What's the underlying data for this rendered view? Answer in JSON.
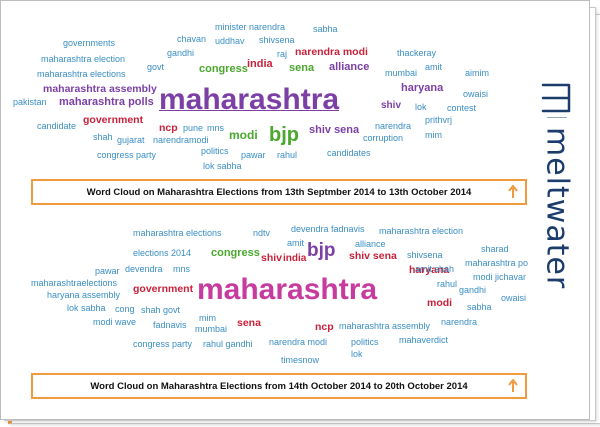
{
  "top_cloud": {
    "words": [
      {
        "id": "governments",
        "text": "governments",
        "style": "w-teal"
      },
      {
        "id": "maharashtra-election",
        "text": "maharashtra election",
        "style": "w-teal"
      },
      {
        "id": "maharashtra-elections",
        "text": "maharashtra elections",
        "style": "w-teal"
      },
      {
        "id": "maharashtra-assembly",
        "text": "maharashtra assembly",
        "style": "w-purple"
      },
      {
        "id": "pakistan",
        "text": "pakistan",
        "style": "w-teal"
      },
      {
        "id": "maharashtra-polls",
        "text": "maharashtra polls",
        "style": "w-purple"
      },
      {
        "id": "candidate",
        "text": "candidate",
        "style": "w-teal"
      },
      {
        "id": "shah",
        "text": "shah",
        "style": "w-teal"
      },
      {
        "id": "gujarat",
        "text": "gujarat",
        "style": "w-teal"
      },
      {
        "id": "narendramodi",
        "text": "narendramodi",
        "style": "w-teal"
      },
      {
        "id": "congress-party",
        "text": "congress party",
        "style": "w-teal"
      },
      {
        "id": "chavan",
        "text": "chavan",
        "style": "w-teal"
      },
      {
        "id": "gandhi",
        "text": "gandhi",
        "style": "w-teal"
      },
      {
        "id": "govt",
        "text": "govt",
        "style": "w-teal"
      },
      {
        "id": "minister-narendra",
        "text": "minister narendra",
        "style": "w-teal"
      },
      {
        "id": "uddhav",
        "text": "uddhav",
        "style": "w-teal"
      },
      {
        "id": "shivsena",
        "text": "shivsena",
        "style": "w-teal"
      },
      {
        "id": "sabha",
        "text": "sabha",
        "style": "w-teal"
      },
      {
        "id": "raj",
        "text": "raj",
        "style": "w-teal"
      },
      {
        "id": "narendra-modi",
        "text": "narendra modi",
        "style": "w-red"
      },
      {
        "id": "thackeray",
        "text": "thackeray",
        "style": "w-teal"
      },
      {
        "id": "congress",
        "text": "congress",
        "style": "w-green"
      },
      {
        "id": "india",
        "text": "india",
        "style": "w-red"
      },
      {
        "id": "sena",
        "text": "sena",
        "style": "w-green"
      },
      {
        "id": "alliance",
        "text": "alliance",
        "style": "w-purple"
      },
      {
        "id": "mumbai",
        "text": "mumbai",
        "style": "w-teal"
      },
      {
        "id": "amit",
        "text": "amit",
        "style": "w-teal"
      },
      {
        "id": "aimim",
        "text": "aimim",
        "style": "w-teal"
      },
      {
        "id": "maharashtra",
        "text": "maharashtra",
        "style": "w-purple"
      },
      {
        "id": "haryana",
        "text": "haryana",
        "style": "w-purple"
      },
      {
        "id": "owaisi",
        "text": "owaisi",
        "style": "w-teal"
      },
      {
        "id": "shiv",
        "text": "shiv",
        "style": "w-purple"
      },
      {
        "id": "lok",
        "text": "lok",
        "style": "w-teal"
      },
      {
        "id": "contest",
        "text": "contest",
        "style": "w-teal"
      },
      {
        "id": "government",
        "text": "government",
        "style": "w-red"
      },
      {
        "id": "ncp",
        "text": "ncp",
        "style": "w-red"
      },
      {
        "id": "pune",
        "text": "pune",
        "style": "w-teal"
      },
      {
        "id": "mns",
        "text": "mns",
        "style": "w-teal"
      },
      {
        "id": "modi",
        "text": "modi",
        "style": "w-green"
      },
      {
        "id": "bjp",
        "text": "bjp",
        "style": "w-green"
      },
      {
        "id": "shiv-sena",
        "text": "shiv sena",
        "style": "w-purple"
      },
      {
        "id": "narendra",
        "text": "narendra",
        "style": "w-teal"
      },
      {
        "id": "prithvrj",
        "text": "prithvrj",
        "style": "w-teal"
      },
      {
        "id": "corruption",
        "text": "corruption",
        "style": "w-teal"
      },
      {
        "id": "mim",
        "text": "mim",
        "style": "w-teal"
      },
      {
        "id": "politics",
        "text": "politics",
        "style": "w-teal"
      },
      {
        "id": "pawar",
        "text": "pawar",
        "style": "w-teal"
      },
      {
        "id": "rahul",
        "text": "rahul",
        "style": "w-teal"
      },
      {
        "id": "candidates",
        "text": "candidates",
        "style": "w-teal"
      },
      {
        "id": "lok-sabha",
        "text": "lok sabha",
        "style": "w-teal"
      }
    ]
  },
  "top_caption": "Word Cloud on Maharashtra Elections from 13th Septmber 2014 to 13th October 2014",
  "bottom_cloud": {
    "words": [
      {
        "id": "maharashtra-elections",
        "text": "maharashtra elections",
        "style": "w-teal"
      },
      {
        "id": "ndtv",
        "text": "ndtv",
        "style": "w-teal"
      },
      {
        "id": "devendra-fadnavis",
        "text": "devendra fadnavis",
        "style": "w-teal"
      },
      {
        "id": "maharashtra-election",
        "text": "maharashtra election",
        "style": "w-teal"
      },
      {
        "id": "amit",
        "text": "amit",
        "style": "w-teal"
      },
      {
        "id": "alliance",
        "text": "alliance",
        "style": "w-teal"
      },
      {
        "id": "elections-2014",
        "text": "elections 2014",
        "style": "w-teal"
      },
      {
        "id": "congress",
        "text": "congress",
        "style": "w-green"
      },
      {
        "id": "bjp",
        "text": "bjp",
        "style": "w-purple"
      },
      {
        "id": "shiv-sena",
        "text": "shiv sena",
        "style": "w-red"
      },
      {
        "id": "shivsena",
        "text": "shivsena",
        "style": "w-teal"
      },
      {
        "id": "sharad",
        "text": "sharad",
        "style": "w-teal"
      },
      {
        "id": "shiv",
        "text": "shiv",
        "style": "w-red"
      },
      {
        "id": "india",
        "text": "india",
        "style": "w-red"
      },
      {
        "id": "pawar",
        "text": "pawar",
        "style": "w-teal"
      },
      {
        "id": "devendra",
        "text": "devendra",
        "style": "w-teal"
      },
      {
        "id": "mns",
        "text": "mns",
        "style": "w-teal"
      },
      {
        "id": "haryana",
        "text": "haryana",
        "style": "w-red"
      },
      {
        "id": "amit-shah",
        "text": "amit shah",
        "style": "w-teal"
      },
      {
        "id": "maharashtra-po",
        "text": "maharashtra po",
        "style": "w-teal"
      },
      {
        "id": "maharashtraelections",
        "text": "maharashtraelections",
        "style": "w-teal"
      },
      {
        "id": "haryana-assembly",
        "text": "haryana assembly",
        "style": "w-teal"
      },
      {
        "id": "maharashtra",
        "text": "maharashtra",
        "style": "w-magenta"
      },
      {
        "id": "government",
        "text": "government",
        "style": "w-red"
      },
      {
        "id": "rahul",
        "text": "rahul",
        "style": "w-teal"
      },
      {
        "id": "modi-jichavar",
        "text": "modi jichavar",
        "style": "w-teal"
      },
      {
        "id": "gandhi",
        "text": "gandhi",
        "style": "w-teal"
      },
      {
        "id": "owaisi",
        "text": "owaisi",
        "style": "w-teal"
      },
      {
        "id": "lok-sabha",
        "text": "lok sabha",
        "style": "w-teal"
      },
      {
        "id": "cong",
        "text": "cong",
        "style": "w-teal"
      },
      {
        "id": "shah-govt",
        "text": "shah govt",
        "style": "w-teal"
      },
      {
        "id": "modi",
        "text": "modi",
        "style": "w-red"
      },
      {
        "id": "sabha",
        "text": "sabha",
        "style": "w-teal"
      },
      {
        "id": "modi-wave",
        "text": "modi wave",
        "style": "w-teal"
      },
      {
        "id": "fadnavis",
        "text": "fadnavis",
        "style": "w-teal"
      },
      {
        "id": "mim",
        "text": "mim",
        "style": "w-teal"
      },
      {
        "id": "mumbai",
        "text": "mumbai",
        "style": "w-teal"
      },
      {
        "id": "sena",
        "text": "sena",
        "style": "w-red"
      },
      {
        "id": "ncp",
        "text": "ncp",
        "style": "w-red"
      },
      {
        "id": "maharashtra-assembly",
        "text": "maharashtra assembly",
        "style": "w-teal"
      },
      {
        "id": "narendra",
        "text": "narendra",
        "style": "w-teal"
      },
      {
        "id": "congress-party",
        "text": "congress party",
        "style": "w-teal"
      },
      {
        "id": "rahul-gandhi",
        "text": "rahul gandhi",
        "style": "w-teal"
      },
      {
        "id": "narendra-modi",
        "text": "narendra modi",
        "style": "w-teal"
      },
      {
        "id": "politics",
        "text": "politics",
        "style": "w-teal"
      },
      {
        "id": "mahaverdict",
        "text": "mahaverdict",
        "style": "w-teal"
      },
      {
        "id": "lok",
        "text": "lok",
        "style": "w-teal"
      },
      {
        "id": "timesnow",
        "text": "timesnow",
        "style": "w-teal"
      }
    ]
  },
  "bottom_caption": "Word Cloud on Maharashtra Elections from 14th October 2014 to 20th October 2014",
  "brand": {
    "name": "meltwater",
    "color": "#1c3d6b",
    "accent": "#f19a3e"
  }
}
